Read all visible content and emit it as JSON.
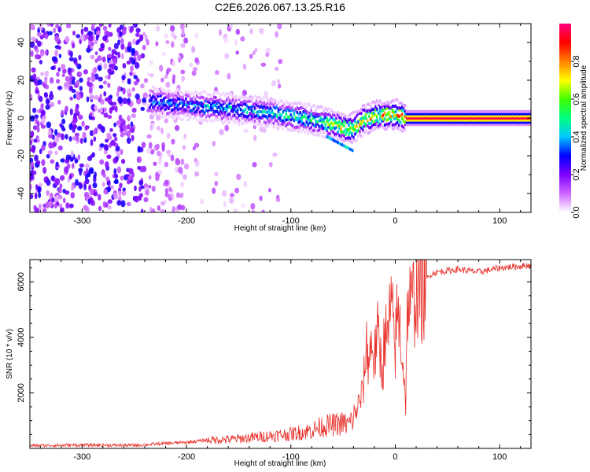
{
  "chart_data": [
    {
      "type": "heatmap",
      "title": "C2E6.2026.067.13.25.R16",
      "xlabel": "Height of straight line (km)",
      "ylabel": "Frequency (Hz)",
      "xlim": [
        -350,
        130
      ],
      "ylim": [
        -50,
        50
      ],
      "xticks": [
        -300,
        -200,
        -100,
        0,
        100
      ],
      "yticks": [
        -40,
        -20,
        0,
        20,
        40
      ],
      "xtick_labels": [
        "-300",
        "-200",
        "-100",
        "0",
        "100"
      ],
      "ytick_labels": [
        "-40",
        "-20",
        "0",
        "20",
        "40"
      ],
      "colorbar": {
        "label": "Normalized spectral amplitude",
        "range": [
          0.0,
          1.0
        ],
        "ticks": [
          0.0,
          0.2,
          0.4,
          0.6,
          0.8
        ],
        "tick_labels": [
          "0.0",
          "0.2",
          "0.4",
          "0.6",
          "0.8"
        ],
        "colormap": [
          "#ffffff",
          "#cc66ff",
          "#7f00ff",
          "#0000ff",
          "#00c8ff",
          "#00ff80",
          "#40ff00",
          "#ffff00",
          "#ff8000",
          "#ff0000",
          "#ff0080"
        ]
      },
      "signal_track": {
        "x": [
          -235,
          -220,
          -200,
          -180,
          -160,
          -140,
          -120,
          -100,
          -80,
          -60,
          -50,
          -45,
          -40,
          -35,
          -30,
          -20,
          -10,
          0,
          10,
          30,
          60,
          90,
          120,
          130
        ],
        "freq": [
          9,
          8,
          7,
          6,
          5,
          4,
          3,
          1,
          -1,
          -3,
          -5,
          -6,
          -5,
          -3,
          -1,
          1,
          2,
          2,
          0,
          0,
          0,
          0,
          0,
          0
        ],
        "amplitude": [
          0.4,
          0.45,
          0.45,
          0.5,
          0.5,
          0.5,
          0.5,
          0.55,
          0.6,
          0.7,
          0.8,
          0.85,
          0.85,
          0.85,
          0.85,
          0.9,
          0.9,
          0.9,
          0.95,
          0.95,
          0.95,
          0.95,
          0.95,
          0.95
        ]
      },
      "noise_region_x": [
        -350,
        -170
      ]
    },
    {
      "type": "line",
      "xlabel": "Height of straight line (km)",
      "ylabel": "SNR (10 * v/v)",
      "xlim": [
        -350,
        130
      ],
      "ylim": [
        0,
        6800
      ],
      "xticks": [
        -300,
        -200,
        -100,
        0,
        100
      ],
      "yticks": [
        2000,
        4000,
        6000
      ],
      "xtick_labels": [
        "-300",
        "-200",
        "-100",
        "0",
        "100"
      ],
      "ytick_labels": [
        "2000",
        "4000",
        "6000"
      ],
      "line_color": "#e8302a",
      "series": [
        {
          "name": "SNR",
          "x": [
            -350,
            -300,
            -250,
            -200,
            -180,
            -160,
            -140,
            -120,
            -100,
            -80,
            -70,
            -60,
            -50,
            -45,
            -40,
            -35,
            -32,
            -30,
            -28,
            -25,
            -22,
            -20,
            -18,
            -15,
            -12,
            -10,
            -8,
            -5,
            -2,
            0,
            2,
            5,
            8,
            10,
            12,
            15,
            18,
            20,
            25,
            30,
            35,
            40,
            50,
            60,
            80,
            100,
            115,
            130
          ],
          "y": [
            100,
            120,
            110,
            220,
            300,
            320,
            380,
            450,
            520,
            650,
            800,
            850,
            900,
            850,
            1100,
            1600,
            1900,
            2500,
            3700,
            3200,
            4000,
            3000,
            4200,
            3500,
            2800,
            4500,
            3500,
            5000,
            4400,
            3600,
            4900,
            4200,
            2800,
            1700,
            5500,
            5000,
            5400,
            5800,
            5600,
            6100,
            6300,
            6350,
            6400,
            6450,
            6350,
            6500,
            6550,
            6600
          ]
        }
      ]
    }
  ]
}
